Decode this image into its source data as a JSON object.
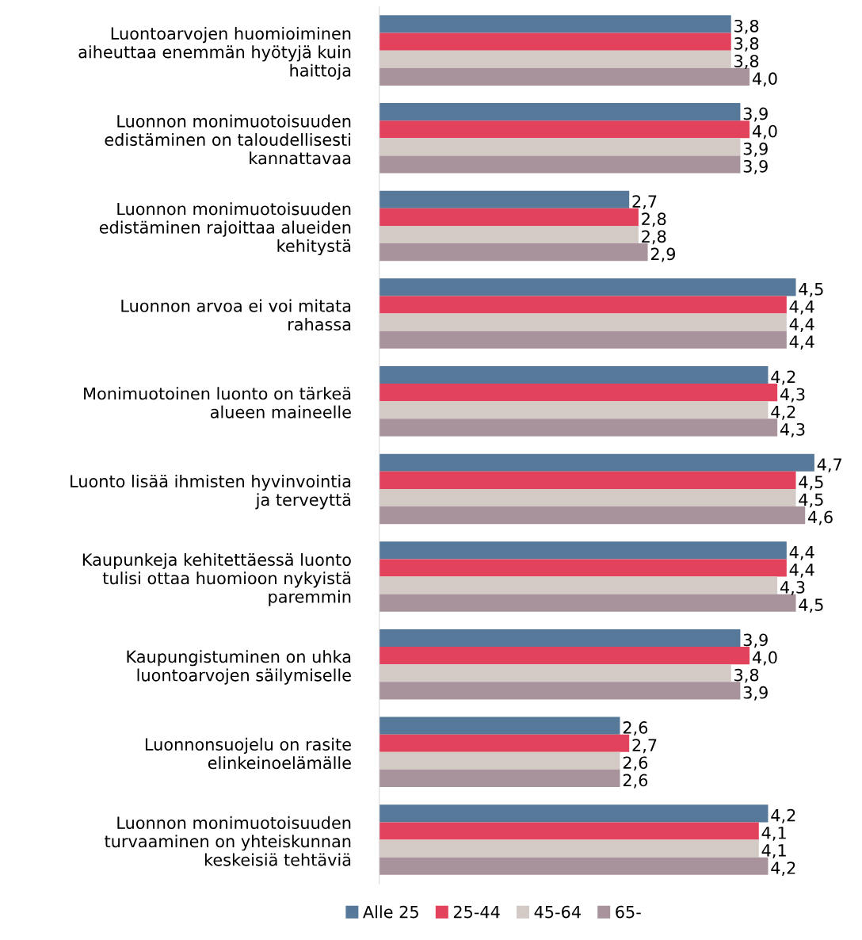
{
  "chart_data": {
    "type": "bar",
    "orientation": "horizontal",
    "legend": "bottom",
    "grid": false,
    "categories": [
      "Luontoarvojen huomioiminen\naiheuttaa enemmän hyötyjä kuin\nhaittoja",
      "Luonnon monimuotoisuuden\nedistäminen on taloudellisesti\nkannattavaa",
      "Luonnon monimuotoisuuden\nedistäminen rajoittaa alueiden\nkehitystä",
      "Luonnon arvoa ei voi mitata\nrahassa",
      "Monimuotoinen luonto on tärkeä\nalueen maineelle",
      "Luonto lisää ihmisten hyvinvointia\nja terveyttä",
      "Kaupunkeja kehitettäessä luonto\ntulisi ottaa huomioon nykyistä\nparemmin",
      "Kaupungistuminen on uhka\nluontoarvojen säilymiselle",
      "Luonnonsuojelu on rasite\nelinkeinoelämälle",
      "Luonnon monimuotoisuuden\nturvaaminen on yhteiskunnan\nkeskeisiä tehtäviä"
    ],
    "series": [
      {
        "name": "Alle 25",
        "color": "#56799a",
        "values": [
          3.8,
          3.9,
          2.7,
          4.5,
          4.2,
          4.7,
          4.4,
          3.9,
          2.6,
          4.2
        ],
        "value_labels": [
          "3,8",
          "3,9",
          "2,7",
          "4,5",
          "4,2",
          "4,7",
          "4,4",
          "3,9",
          "2,6",
          "4,2"
        ]
      },
      {
        "name": "25-44",
        "color": "#e2425c",
        "values": [
          3.8,
          4.0,
          2.8,
          4.4,
          4.3,
          4.5,
          4.4,
          4.0,
          2.7,
          4.1
        ],
        "value_labels": [
          "3,8",
          "4,0",
          "2,8",
          "4,4",
          "4,3",
          "4,5",
          "4,4",
          "4,0",
          "2,7",
          "4,1"
        ]
      },
      {
        "name": "45-64",
        "color": "#d3cac6",
        "values": [
          3.8,
          3.9,
          2.8,
          4.4,
          4.2,
          4.5,
          4.3,
          3.8,
          2.6,
          4.1
        ],
        "value_labels": [
          "3,8",
          "3,9",
          "2,8",
          "4,4",
          "4,2",
          "4,5",
          "4,3",
          "3,8",
          "2,6",
          "4,1"
        ]
      },
      {
        "name": "65-",
        "color": "#a8939c",
        "values": [
          4.0,
          3.9,
          2.9,
          4.4,
          4.3,
          4.6,
          4.5,
          3.9,
          2.6,
          4.2
        ],
        "value_labels": [
          "4,0",
          "3,9",
          "2,9",
          "4,4",
          "4,3",
          "4,6",
          "4,5",
          "3,9",
          "2,6",
          "4,2"
        ]
      }
    ]
  }
}
